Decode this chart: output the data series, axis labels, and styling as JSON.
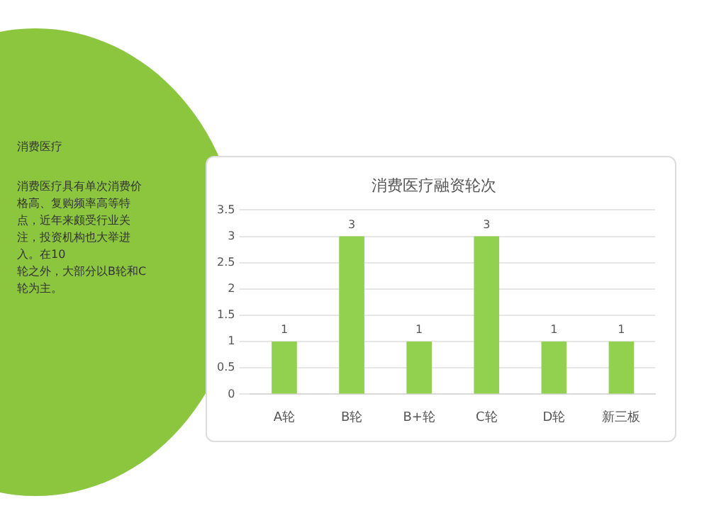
{
  "chart_data": {
    "type": "bar",
    "title": "消费医疗融资轮次",
    "categories": [
      "A轮",
      "B轮",
      "B+轮",
      "C轮",
      "D轮",
      "新三板"
    ],
    "values": [
      1,
      3,
      1,
      3,
      1,
      1
    ],
    "color": "#92d050",
    "ylim": [
      0,
      3.5
    ],
    "yticks": [
      0,
      0.5,
      1,
      1.5,
      2,
      2.5,
      3,
      3.5
    ],
    "grid": "y",
    "data_labels": true,
    "annotations": [
      "消费医疗",
      "消费医疗具有单次消费价格高、复购频率高等特点，近年来颇受行业关注，投资机构也大举进入。在10",
      "轮之外，大部分以B轮和C轮为主。"
    ]
  }
}
